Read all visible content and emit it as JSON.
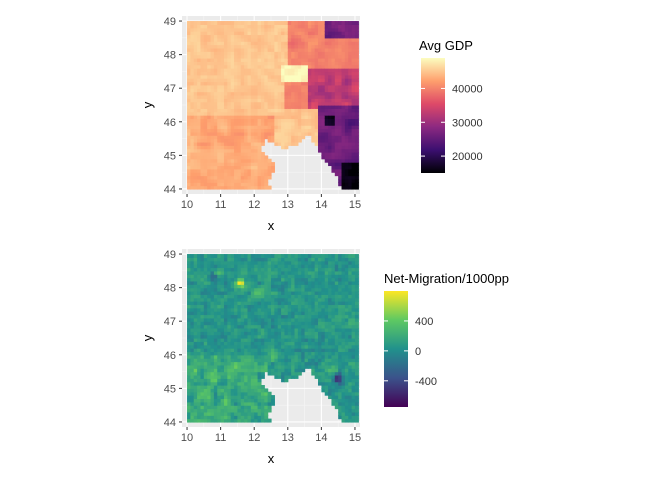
{
  "chart_data": [
    {
      "type": "heatmap",
      "xlabel": "x",
      "ylabel": "y",
      "xlim": [
        9.85,
        15.15
      ],
      "ylim": [
        43.85,
        49.15
      ],
      "x_ticks": [
        10,
        11,
        12,
        13,
        14,
        15
      ],
      "y_ticks": [
        44,
        45,
        46,
        47,
        48,
        49
      ],
      "grid": true,
      "legend": {
        "title": "Avg GDP",
        "position": "right",
        "range": [
          15000,
          49000
        ],
        "ticks": [
          20000,
          30000,
          40000
        ],
        "tick_labels": [
          "20000",
          "30000",
          "40000"
        ],
        "palette": [
          "#000004",
          "#3b0f70",
          "#8c2981",
          "#de4968",
          "#fe9f6d",
          "#fcfdbf"
        ]
      },
      "cell_size": 0.1,
      "missing_region": [
        [
          12.3,
          45.5
        ],
        [
          12.9,
          45.2
        ],
        [
          13.4,
          45.4
        ],
        [
          13.6,
          45.7
        ],
        [
          14.0,
          45.0
        ],
        [
          14.3,
          44.6
        ],
        [
          14.5,
          44.3
        ],
        [
          14.6,
          43.9
        ],
        [
          12.5,
          43.9
        ],
        [
          12.4,
          44.2
        ],
        [
          12.6,
          44.6
        ],
        [
          12.5,
          44.9
        ],
        [
          12.2,
          45.1
        ]
      ],
      "regions": [
        {
          "x_range": [
            10.0,
            15.0
          ],
          "y_range": [
            44.0,
            49.0
          ],
          "value": 44000,
          "description": "western and central area, light peach"
        },
        {
          "x_range": [
            12.8,
            13.6
          ],
          "y_range": [
            47.2,
            47.7
          ],
          "value": 48500,
          "description": "bright yellow patch"
        },
        {
          "x_range": [
            13.0,
            14.5
          ],
          "y_range": [
            47.7,
            49.0
          ],
          "value": 38000,
          "description": "north-east salmon zone"
        },
        {
          "x_range": [
            13.6,
            15.0
          ],
          "y_range": [
            46.5,
            48.0
          ],
          "value": 30000,
          "description": "eastern magenta zone"
        },
        {
          "x_range": [
            14.0,
            15.0
          ],
          "y_range": [
            44.2,
            46.5
          ],
          "value": 22000,
          "description": "south-east dark purple zone"
        },
        {
          "x_range": [
            14.2,
            15.0
          ],
          "y_range": [
            48.6,
            49.0
          ],
          "value": 25000,
          "description": "north-east corner dark purple"
        },
        {
          "x_range": [
            14.6,
            15.0
          ],
          "y_range": [
            44.2,
            44.6
          ],
          "value": 15000,
          "description": "black cells at south-east"
        }
      ]
    },
    {
      "type": "heatmap",
      "xlabel": "x",
      "ylabel": "y",
      "xlim": [
        9.85,
        15.15
      ],
      "ylim": [
        43.85,
        49.15
      ],
      "x_ticks": [
        10,
        11,
        12,
        13,
        14,
        15
      ],
      "y_ticks": [
        44,
        45,
        46,
        47,
        48,
        49
      ],
      "grid": true,
      "legend": {
        "title": "Net-Migration/1000pp",
        "position": "right",
        "range": [
          -750,
          800
        ],
        "ticks": [
          -400,
          0,
          400
        ],
        "tick_labels": [
          "-400",
          "0",
          "400"
        ],
        "palette": [
          "#440154",
          "#3b528b",
          "#21918c",
          "#5ec962",
          "#fde725"
        ]
      },
      "cell_size": 0.1,
      "background_value": 60,
      "hotspots": [
        {
          "x": 11.6,
          "y": 48.15,
          "value": 800
        },
        {
          "x": 10.9,
          "y": 48.4,
          "value": 650
        },
        {
          "x": 12.1,
          "y": 47.9,
          "value": 350
        },
        {
          "x": 10.2,
          "y": 45.5,
          "value": 300
        },
        {
          "x": 10.8,
          "y": 45.4,
          "value": 300
        },
        {
          "x": 11.4,
          "y": 45.7,
          "value": 280
        },
        {
          "x": 10.5,
          "y": 44.8,
          "value": 280
        },
        {
          "x": 11.2,
          "y": 44.6,
          "value": 260
        },
        {
          "x": 14.4,
          "y": 45.6,
          "value": 320
        },
        {
          "x": 12.6,
          "y": 46.0,
          "value": 240
        },
        {
          "x": 14.9,
          "y": 47.0,
          "value": 220
        },
        {
          "x": 10.85,
          "y": 48.35,
          "value": -650
        },
        {
          "x": 14.5,
          "y": 45.3,
          "value": -500
        }
      ]
    }
  ]
}
